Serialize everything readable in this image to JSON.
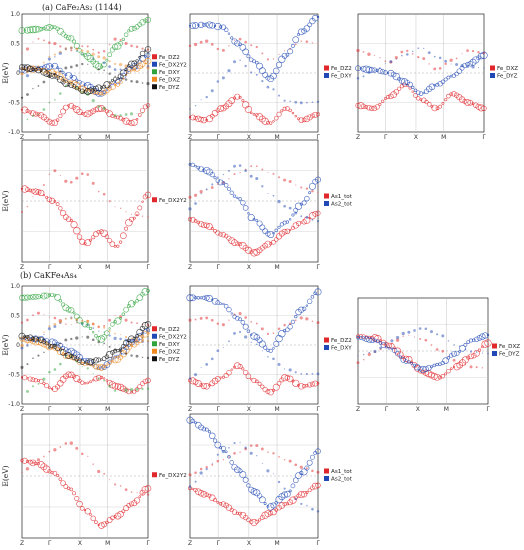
{
  "figure": {
    "section_a": "(a)  CaFe₂As₂ (1144)",
    "section_b": "(b) CaKFe₄As₄"
  },
  "colors": {
    "red": "#e0272b",
    "blue": "#2149b5",
    "green": "#2fa43d",
    "orange": "#ef8a21",
    "navy": "#17327a",
    "black": "#111111",
    "purple": "#6d4a96",
    "light_blue": "#5a7fd6"
  },
  "chart_data": [
    {
      "id": "a1",
      "type": "scatter",
      "ylabel": "E(eV)",
      "ylim": [
        -1.0,
        1.0
      ],
      "xticks": [
        "Z",
        "Γ",
        "X",
        "M",
        "Γ"
      ],
      "yticks": [
        "1.0",
        "0.5",
        "0",
        "-0.5",
        "-1.0"
      ],
      "legend": [
        "Fe_DZ2",
        "Fe_DX2Y2",
        "Fe_DXY",
        "Fe_DXZ",
        "Fe_DYZ"
      ],
      "series": [
        {
          "name": "Fe_DZ2",
          "color": "#e0272b",
          "y": [
            -0.62,
            -0.7,
            -0.85,
            -0.55,
            -0.7,
            -0.6,
            -0.75,
            -0.85,
            -0.55
          ]
        },
        {
          "name": "Fe_DX2Y2",
          "color": "#2149b5",
          "y": [
            0.05,
            0.08,
            0.12,
            -0.05,
            -0.2,
            -0.35,
            -0.15,
            0.1,
            0.3
          ]
        },
        {
          "name": "Fe_DXY",
          "color": "#2fa43d",
          "y": [
            0.72,
            0.74,
            0.78,
            0.6,
            0.3,
            0.1,
            0.45,
            0.75,
            0.9
          ]
        },
        {
          "name": "Fe_DXZ",
          "color": "#ef8a21",
          "y": [
            0.08,
            0.06,
            0.0,
            -0.15,
            -0.28,
            -0.35,
            -0.2,
            0.05,
            0.2
          ]
        },
        {
          "name": "Fe_DYZ",
          "color": "#111111",
          "y": [
            0.1,
            0.05,
            -0.05,
            -0.2,
            -0.32,
            -0.25,
            -0.1,
            0.15,
            0.4
          ]
        }
      ]
    },
    {
      "id": "a2",
      "type": "scatter",
      "ylim": [
        -1.0,
        1.0
      ],
      "xticks": [
        "Z",
        "Γ",
        "X",
        "M",
        "Γ"
      ],
      "legend": [
        "Fe_DZ2",
        "Fe_DXY"
      ],
      "series": [
        {
          "name": "Fe_DZ2",
          "color": "#e0272b",
          "y": [
            -0.75,
            -0.8,
            -0.6,
            -0.4,
            -0.7,
            -0.85,
            -0.6,
            -0.8,
            -0.7
          ]
        },
        {
          "name": "Fe_DXY",
          "color": "#2149b5",
          "y": [
            0.8,
            0.82,
            0.78,
            0.5,
            0.2,
            -0.1,
            0.3,
            0.7,
            0.95
          ]
        }
      ]
    },
    {
      "id": "a3",
      "type": "scatter",
      "ylim": [
        -1.0,
        1.0
      ],
      "xticks": [
        "Z",
        "Γ",
        "X",
        "M",
        "Γ"
      ],
      "legend": [
        "Fe_DXZ",
        "Fe_DYZ"
      ],
      "series": [
        {
          "name": "Fe_DXZ",
          "color": "#e0272b",
          "y": [
            -0.55,
            -0.6,
            -0.4,
            -0.2,
            -0.45,
            -0.6,
            -0.35,
            -0.5,
            -0.6
          ]
        },
        {
          "name": "Fe_DYZ",
          "color": "#2149b5",
          "y": [
            0.08,
            0.05,
            0.0,
            -0.15,
            -0.35,
            -0.2,
            -0.05,
            0.15,
            0.3
          ]
        }
      ]
    },
    {
      "id": "a4",
      "type": "scatter",
      "ylabel": "E(eV)",
      "ylim": [
        -1.0,
        1.0
      ],
      "xticks": [
        "Z",
        "Γ",
        "X",
        "M",
        "Γ"
      ],
      "legend": [
        "Fe_DX2Y2"
      ],
      "series": [
        {
          "name": "Fe_DX2Y2",
          "color": "#e0272b",
          "y": [
            0.2,
            0.15,
            0.0,
            -0.3,
            -0.7,
            -0.5,
            -0.75,
            -0.3,
            0.1
          ]
        }
      ]
    },
    {
      "id": "a5",
      "type": "scatter",
      "ylim": [
        -1.0,
        1.0
      ],
      "xticks": [
        "Z",
        "Γ",
        "X",
        "M",
        "Γ"
      ],
      "legend": [
        "As1_tot",
        "As2_tot"
      ],
      "series": [
        {
          "name": "As1_tot",
          "color": "#e0272b",
          "y": [
            -0.3,
            -0.4,
            -0.55,
            -0.7,
            -0.85,
            -0.7,
            -0.5,
            -0.35,
            -0.2
          ]
        },
        {
          "name": "As2_tot",
          "color": "#2149b5",
          "y": [
            0.6,
            0.5,
            0.3,
            0.05,
            -0.3,
            -0.55,
            -0.35,
            -0.05,
            0.35
          ]
        }
      ]
    },
    {
      "id": "b1",
      "type": "scatter",
      "ylabel": "E(eV)",
      "ylim": [
        -1.0,
        1.0
      ],
      "xticks": [
        "Z",
        "Γ",
        "X",
        "M",
        "Γ"
      ],
      "yticks": [
        "1.0",
        "0.5",
        "0",
        "-0.5",
        "-1.0"
      ],
      "legend": [
        "Fe_DZ2",
        "Fe_DX2Y2",
        "Fe_DXY",
        "Fe_DXZ",
        "Fe_DYZ"
      ],
      "series": [
        {
          "name": "Fe_DZ2",
          "color": "#e0272b",
          "y": [
            -0.55,
            -0.6,
            -0.75,
            -0.5,
            -0.65,
            -0.55,
            -0.7,
            -0.8,
            -0.6
          ]
        },
        {
          "name": "Fe_DX2Y2",
          "color": "#2149b5",
          "y": [
            0.12,
            0.1,
            0.05,
            -0.1,
            -0.25,
            -0.4,
            -0.2,
            0.05,
            0.25
          ]
        },
        {
          "name": "Fe_DXY",
          "color": "#2fa43d",
          "y": [
            0.8,
            0.82,
            0.85,
            0.6,
            0.35,
            0.1,
            0.4,
            0.7,
            0.92
          ]
        },
        {
          "name": "Fe_DXZ",
          "color": "#ef8a21",
          "y": [
            0.1,
            0.05,
            -0.05,
            -0.2,
            -0.32,
            -0.38,
            -0.25,
            0.0,
            0.2
          ]
        },
        {
          "name": "Fe_DYZ",
          "color": "#111111",
          "y": [
            0.15,
            0.1,
            -0.02,
            -0.18,
            -0.3,
            -0.25,
            -0.1,
            0.1,
            0.35
          ]
        }
      ]
    },
    {
      "id": "b2",
      "type": "scatter",
      "ylim": [
        -1.0,
        1.0
      ],
      "xticks": [
        "Z",
        "Γ",
        "X",
        "M",
        "Γ"
      ],
      "legend": [
        "Fe_DZ2",
        "Fe_DXY"
      ],
      "series": [
        {
          "name": "Fe_DZ2",
          "color": "#e0272b",
          "y": [
            -0.6,
            -0.7,
            -0.55,
            -0.35,
            -0.6,
            -0.8,
            -0.55,
            -0.7,
            -0.65
          ]
        },
        {
          "name": "Fe_DXY",
          "color": "#2149b5",
          "y": [
            0.8,
            0.8,
            0.7,
            0.45,
            0.15,
            -0.1,
            0.25,
            0.6,
            0.9
          ]
        }
      ]
    },
    {
      "id": "b3",
      "type": "scatter",
      "ylim": [
        -1.0,
        1.0
      ],
      "xticks": [
        "Z",
        "Γ",
        "X",
        "M",
        "Γ"
      ],
      "legend": [
        "Fe_DXZ",
        "Fe_DYZ"
      ],
      "series": [
        {
          "name": "Fe_DXZ",
          "color": "#e0272b",
          "y": [
            0.28,
            0.25,
            0.1,
            -0.15,
            -0.4,
            -0.5,
            -0.3,
            -0.1,
            0.15
          ]
        },
        {
          "name": "Fe_DYZ",
          "color": "#2149b5",
          "y": [
            0.25,
            0.2,
            0.05,
            -0.2,
            -0.35,
            -0.25,
            -0.05,
            0.2,
            0.3
          ]
        }
      ]
    },
    {
      "id": "b4",
      "type": "scatter",
      "ylabel": "E(eV)",
      "ylim": [
        -1.0,
        1.0
      ],
      "xticks": [
        "Z",
        "Γ",
        "X",
        "M",
        "Γ"
      ],
      "legend": [
        "Fe_DX2Y2"
      ],
      "series": [
        {
          "name": "Fe_DX2Y2",
          "color": "#e0272b",
          "y": [
            0.25,
            0.2,
            0.05,
            -0.2,
            -0.55,
            -0.8,
            -0.65,
            -0.45,
            -0.2
          ]
        }
      ]
    },
    {
      "id": "b5",
      "type": "scatter",
      "ylim": [
        -1.0,
        1.0
      ],
      "xticks": [
        "Z",
        "Γ",
        "X",
        "M",
        "Γ"
      ],
      "legend": [
        "As1_tot",
        "As2_tot"
      ],
      "series": [
        {
          "name": "As1_tot",
          "color": "#e0272b",
          "y": [
            -0.2,
            -0.3,
            -0.45,
            -0.6,
            -0.75,
            -0.6,
            -0.45,
            -0.3,
            -0.15
          ]
        },
        {
          "name": "As2_tot",
          "color": "#2149b5",
          "y": [
            0.9,
            0.75,
            0.45,
            0.1,
            -0.25,
            -0.5,
            -0.3,
            0.05,
            0.4
          ]
        }
      ]
    }
  ]
}
